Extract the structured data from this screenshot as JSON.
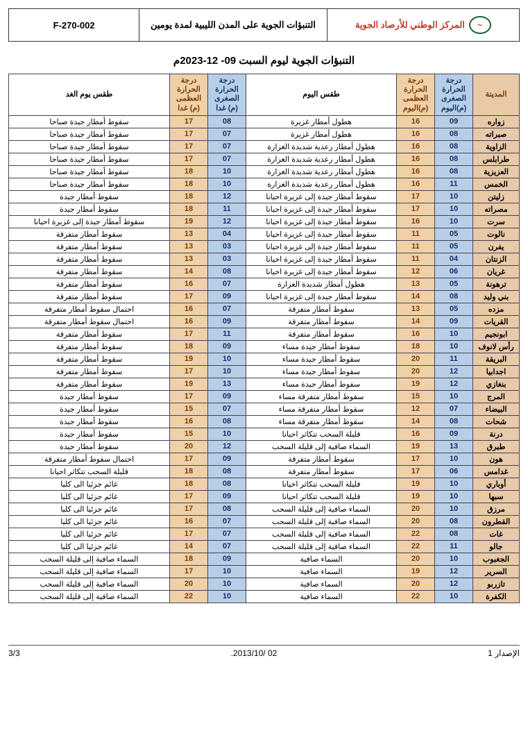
{
  "header": {
    "form_no": "F-270-002",
    "center_title": "التنبؤات الجوية على المدن الليبية لمدة يومين",
    "org_name": "المركز الوطني للأرصاد الجوية"
  },
  "main_title": "التنبؤات الجوية ليوم السبت 09- 12-2023م",
  "columns": {
    "city": "المدينة",
    "min_today": "درجة الحرارة الصغرى (م)اليوم",
    "max_today": "درجة الحرارة العظمى (م)اليوم",
    "wx_today": "طقس اليوم",
    "min_tomorrow": "درجة الحرارة الصغرى (م) غدا",
    "max_tomorrow": "درجة الحرارة العظمى (م) غدا",
    "wx_tomorrow": "طقس يوم الغد"
  },
  "rows": [
    {
      "city": "زواره",
      "min1": "09",
      "max1": "16",
      "wx1": "هطول أمطار غزيرة",
      "min2": "08",
      "max2": "17",
      "wx2": "سقوط أمطار جيدة صباحا"
    },
    {
      "city": "صبراته",
      "min1": "08",
      "max1": "16",
      "wx1": "هطول أمطار غزيرة",
      "min2": "07",
      "max2": "17",
      "wx2": "سقوط أمطار جيدة صباحا"
    },
    {
      "city": "الزاوية",
      "min1": "08",
      "max1": "16",
      "wx1": "هطول أمطار رعدية شديدة الغزارة",
      "min2": "07",
      "max2": "17",
      "wx2": "سقوط أمطار جيدة صباحا"
    },
    {
      "city": "طرابلس",
      "min1": "08",
      "max1": "16",
      "wx1": "هطول أمطار رعدية شديدة الغزارة",
      "min2": "07",
      "max2": "17",
      "wx2": "سقوط أمطار جيدة صباحا"
    },
    {
      "city": "العزيزية",
      "min1": "08",
      "max1": "16",
      "wx1": "هطول أمطار رعدية شديدة الغزارة",
      "min2": "10",
      "max2": "18",
      "wx2": "سقوط أمطار جيدة صباحا"
    },
    {
      "city": "الخمس",
      "min1": "11",
      "max1": "16",
      "wx1": "هطول أمطار رعدية شديدة الغزارة",
      "min2": "10",
      "max2": "18",
      "wx2": "سقوط أمطار جيدة صباحا"
    },
    {
      "city": "زليتن",
      "min1": "10",
      "max1": "17",
      "wx1": "سقوط أمطار جيدة إلى غزيرة احيانا",
      "min2": "12",
      "max2": "18",
      "wx2": "سقوط أمطار جيدة"
    },
    {
      "city": "مصراته",
      "min1": "10",
      "max1": "17",
      "wx1": "سقوط أمطار جيدة إلى غزيرة احيانا",
      "min2": "11",
      "max2": "18",
      "wx2": "سقوط أمطار جيدة"
    },
    {
      "city": "سرت",
      "min1": "10",
      "max1": "16",
      "wx1": "سقوط أمطار جيدة إلى غزيرة احيانا",
      "min2": "12",
      "max2": "19",
      "wx2": "سقوط أمطار جيدة إلى غزيرة احيانا"
    },
    {
      "city": "نالوت",
      "min1": "05",
      "max1": "11",
      "wx1": "سقوط أمطار جيدة إلى غزيرة احيانا",
      "min2": "04",
      "max2": "13",
      "wx2": "سقوط أمطار متفرقة"
    },
    {
      "city": "يفرن",
      "min1": "05",
      "max1": "11",
      "wx1": "سقوط أمطار جيدة إلى غزيرة احيانا",
      "min2": "03",
      "max2": "13",
      "wx2": "سقوط أمطار متفرقة"
    },
    {
      "city": "الزنتان",
      "min1": "04",
      "max1": "11",
      "wx1": "سقوط أمطار جيدة إلى غزيرة احيانا",
      "min2": "03",
      "max2": "13",
      "wx2": "سقوط أمطار متفرقة"
    },
    {
      "city": "غريان",
      "min1": "06",
      "max1": "12",
      "wx1": "سقوط أمطار جيدة إلى غزيرة احيانا",
      "min2": "08",
      "max2": "14",
      "wx2": "سقوط أمطار متفرقة"
    },
    {
      "city": "ترهونة",
      "min1": "05",
      "max1": "13",
      "wx1": "هطول أمطار شديدة الغزارة",
      "min2": "07",
      "max2": "16",
      "wx2": "سقوط أمطار متفرقة"
    },
    {
      "city": "بني وليد",
      "min1": "08",
      "max1": "14",
      "wx1": "سقوط أمطار جيدة إلى غزيرة احيانا",
      "min2": "09",
      "max2": "17",
      "wx2": "سقوط أمطار متفرقة"
    },
    {
      "city": "مزده",
      "min1": "05",
      "max1": "13",
      "wx1": "سقوط أمطار متفرقة",
      "min2": "07",
      "max2": "16",
      "wx2": "احتمال سقوط أمطار متفرقة"
    },
    {
      "city": "القريات",
      "min1": "09",
      "max1": "14",
      "wx1": "سقوط أمطار متفرقة",
      "min2": "09",
      "max2": "16",
      "wx2": "احتمال سقوط أمطار متفرقة"
    },
    {
      "city": "ابونجيم",
      "min1": "10",
      "max1": "16",
      "wx1": "سقوط أمطار متفرقة",
      "min2": "11",
      "max2": "17",
      "wx2": "سقوط أمطار متفرقة"
    },
    {
      "city": "رأس لانوف",
      "min1": "10",
      "max1": "18",
      "wx1": "سقوط أمطار جيدة مساء",
      "min2": "09",
      "max2": "18",
      "wx2": "سقوط أمطار متفرقة"
    },
    {
      "city": "البريقة",
      "min1": "11",
      "max1": "20",
      "wx1": "سقوط أمطار جيدة مساء",
      "min2": "10",
      "max2": "19",
      "wx2": "سقوط أمطار متفرقة"
    },
    {
      "city": "اجدابيا",
      "min1": "12",
      "max1": "20",
      "wx1": "سقوط أمطار جيدة مساء",
      "min2": "10",
      "max2": "17",
      "wx2": "سقوط أمطار متفرقة"
    },
    {
      "city": "بنغازي",
      "min1": "12",
      "max1": "19",
      "wx1": "سقوط أمطار جيدة مساء",
      "min2": "13",
      "max2": "19",
      "wx2": "سقوط أمطار متفرقة"
    },
    {
      "city": "المرج",
      "min1": "10",
      "max1": "15",
      "wx1": "سقوط أمطار متفرقة مساء",
      "min2": "09",
      "max2": "17",
      "wx2": "سقوط أمطار جيدة"
    },
    {
      "city": "البيضاء",
      "min1": "07",
      "max1": "12",
      "wx1": "سقوط أمطار متفرقة مساء",
      "min2": "07",
      "max2": "15",
      "wx2": "سقوط أمطار جيدة"
    },
    {
      "city": "شحات",
      "min1": "08",
      "max1": "14",
      "wx1": "سقوط أمطار متفرقة مساء",
      "min2": "08",
      "max2": "16",
      "wx2": "سقوط أمطار جيدة"
    },
    {
      "city": "درنة",
      "min1": "09",
      "max1": "16",
      "wx1": "قليلة السحب تتكاثر احيانا",
      "min2": "10",
      "max2": "15",
      "wx2": "سقوط أمطار جيدة"
    },
    {
      "city": "طبرق",
      "min1": "13",
      "max1": "19",
      "wx1": "السماء صافية إلى قليلة السحب",
      "min2": "12",
      "max2": "20",
      "wx2": "سقوط أمطار جيدة"
    },
    {
      "city": "هون",
      "min1": "10",
      "max1": "17",
      "wx1": "سقوط أمطار متفرقة",
      "min2": "09",
      "max2": "17",
      "wx2": "احتمال سقوط أمطار متفرقة"
    },
    {
      "city": "غدامس",
      "min1": "06",
      "max1": "17",
      "wx1": "سقوط أمطار متفرقة",
      "min2": "08",
      "max2": "18",
      "wx2": "قليلة السحب تتكاثر احيانا"
    },
    {
      "city": "أوباري",
      "min1": "10",
      "max1": "19",
      "wx1": "قليلة السحب تتكاثر احيانا",
      "min2": "08",
      "max2": "18",
      "wx2": "غائم جزئيا الى كليا"
    },
    {
      "city": "سبها",
      "min1": "10",
      "max1": "19",
      "wx1": "قليلة السحب تتكاثر احيانا",
      "min2": "09",
      "max2": "17",
      "wx2": "غائم جزئيا الى كليا"
    },
    {
      "city": "مرزق",
      "min1": "10",
      "max1": "20",
      "wx1": "السماء صافية إلى قليلة السحب",
      "min2": "08",
      "max2": "17",
      "wx2": "غائم جزئيا الى كليا"
    },
    {
      "city": "القطرون",
      "min1": "08",
      "max1": "20",
      "wx1": "السماء صافية إلى قليلة السحب",
      "min2": "07",
      "max2": "16",
      "wx2": "غائم جزئيا الى كليا"
    },
    {
      "city": "غات",
      "min1": "08",
      "max1": "22",
      "wx1": "السماء صافية إلى قليلة السحب",
      "min2": "07",
      "max2": "17",
      "wx2": "غائم جزئيا الى كليا"
    },
    {
      "city": "جالو",
      "min1": "11",
      "max1": "22",
      "wx1": "السماء صافية إلى قليلة السحب",
      "min2": "07",
      "max2": "14",
      "wx2": "غائم جزئيا الى كليا"
    },
    {
      "city": "الجغبوب",
      "min1": "10",
      "max1": "20",
      "wx1": "السماء صافية",
      "min2": "09",
      "max2": "18",
      "wx2": "السماء صافية إلى قليلة السحب"
    },
    {
      "city": "السرير",
      "min1": "12",
      "max1": "19",
      "wx1": "السماء صافية",
      "min2": "10",
      "max2": "17",
      "wx2": "السماء صافية إلى قليلة السحب"
    },
    {
      "city": "تازربو",
      "min1": "12",
      "max1": "20",
      "wx1": "السماء صافية",
      "min2": "10",
      "max2": "20",
      "wx2": "السماء صافية إلى قليلة السحب"
    },
    {
      "city": "الكفرة",
      "min1": "10",
      "max1": "22",
      "wx1": "السماء صافية",
      "min2": "10",
      "max2": "22",
      "wx2": "السماء صافية إلى قليلة السحب"
    }
  ],
  "footer": {
    "left": "3/3",
    "mid": ".2013/10/ 02",
    "right": "الإصدار 1"
  },
  "style": {
    "min_bg": "#b7cfe6",
    "max_bg": "#f0d0a8",
    "city_bg": "#e8c9a8",
    "border": "#445"
  }
}
